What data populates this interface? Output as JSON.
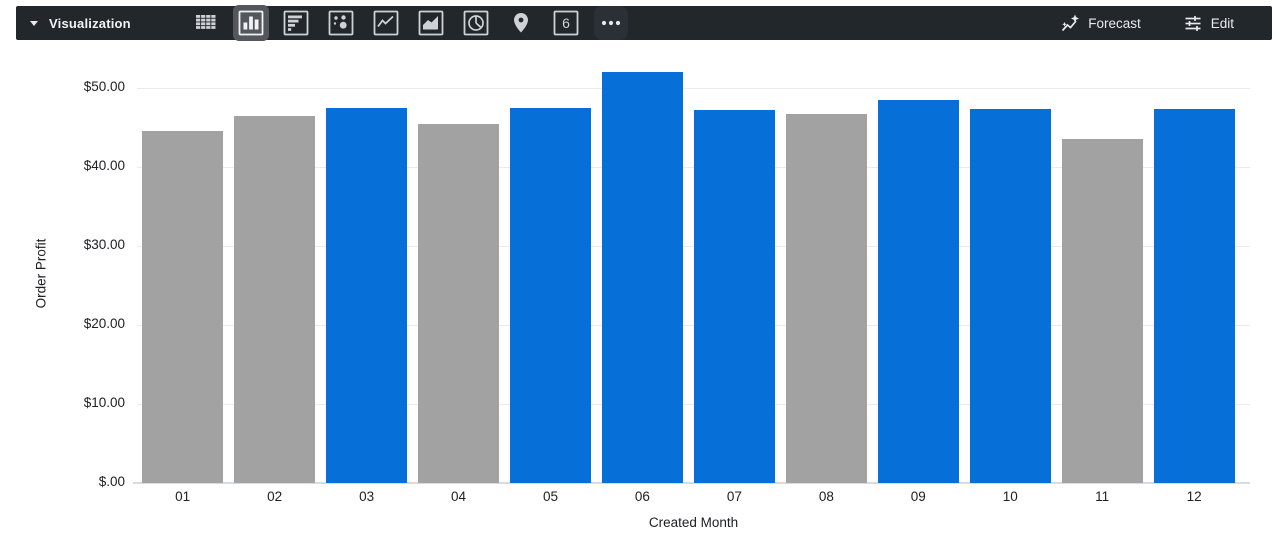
{
  "toolbar": {
    "title": "Visualization",
    "single_value_glyph": "6",
    "chart_types": [
      {
        "name": "table",
        "selected": false
      },
      {
        "name": "column",
        "selected": true
      },
      {
        "name": "bar",
        "selected": false
      },
      {
        "name": "scatter",
        "selected": false
      },
      {
        "name": "line",
        "selected": false
      },
      {
        "name": "area",
        "selected": false
      },
      {
        "name": "pie",
        "selected": false
      },
      {
        "name": "map",
        "selected": false
      },
      {
        "name": "single-value",
        "selected": false
      },
      {
        "name": "more",
        "selected": false
      }
    ],
    "forecast_label": "Forecast",
    "edit_label": "Edit"
  },
  "chart_data": {
    "type": "bar",
    "title": "",
    "xlabel": "Created Month",
    "ylabel": "Order Profit",
    "categories": [
      "01",
      "02",
      "03",
      "04",
      "05",
      "06",
      "07",
      "08",
      "09",
      "10",
      "11",
      "12"
    ],
    "values": [
      44.5,
      46.4,
      47.5,
      45.5,
      47.5,
      52.0,
      47.2,
      46.7,
      48.5,
      47.3,
      43.6,
      47.3
    ],
    "bar_colors": [
      "gray",
      "gray",
      "blue",
      "gray",
      "blue",
      "blue",
      "blue",
      "gray",
      "blue",
      "blue",
      "gray",
      "blue"
    ],
    "colors": {
      "blue": "#0670D8",
      "gray": "#A2A2A2"
    },
    "y_ticks": {
      "values": [
        0,
        10,
        20,
        30,
        40,
        50
      ],
      "labels": [
        "$.00",
        "$10.00",
        "$20.00",
        "$30.00",
        "$40.00",
        "$50.00"
      ]
    },
    "ylim": [
      0,
      53.5
    ],
    "grid": true,
    "legend": "none"
  }
}
